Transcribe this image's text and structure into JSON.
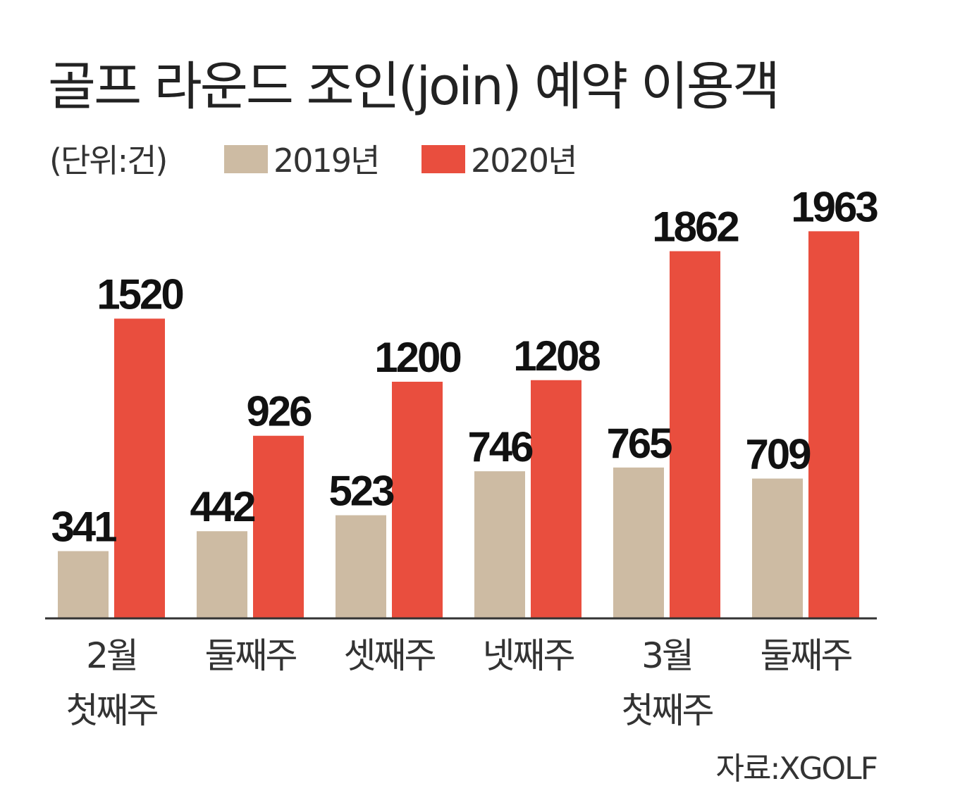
{
  "chart_data": {
    "type": "bar",
    "title": "골프 라운드 조인(join) 예약 이용객",
    "unit": "(단위:건)",
    "categories": [
      [
        "2월",
        "첫째주"
      ],
      [
        "둘째주"
      ],
      [
        "셋째주"
      ],
      [
        "넷째주"
      ],
      [
        "3월",
        "첫째주"
      ],
      [
        "둘째주"
      ]
    ],
    "series": [
      {
        "name": "2019년",
        "color": "#cdbba3",
        "values": [
          341,
          442,
          523,
          746,
          765,
          709
        ]
      },
      {
        "name": "2020년",
        "color": "#e94e3e",
        "values": [
          1520,
          926,
          1200,
          1208,
          1862,
          1963
        ]
      }
    ],
    "ylim": [
      0,
      2100
    ],
    "grid": false,
    "legend_position": "top-left",
    "source": "자료:XGOLF"
  }
}
